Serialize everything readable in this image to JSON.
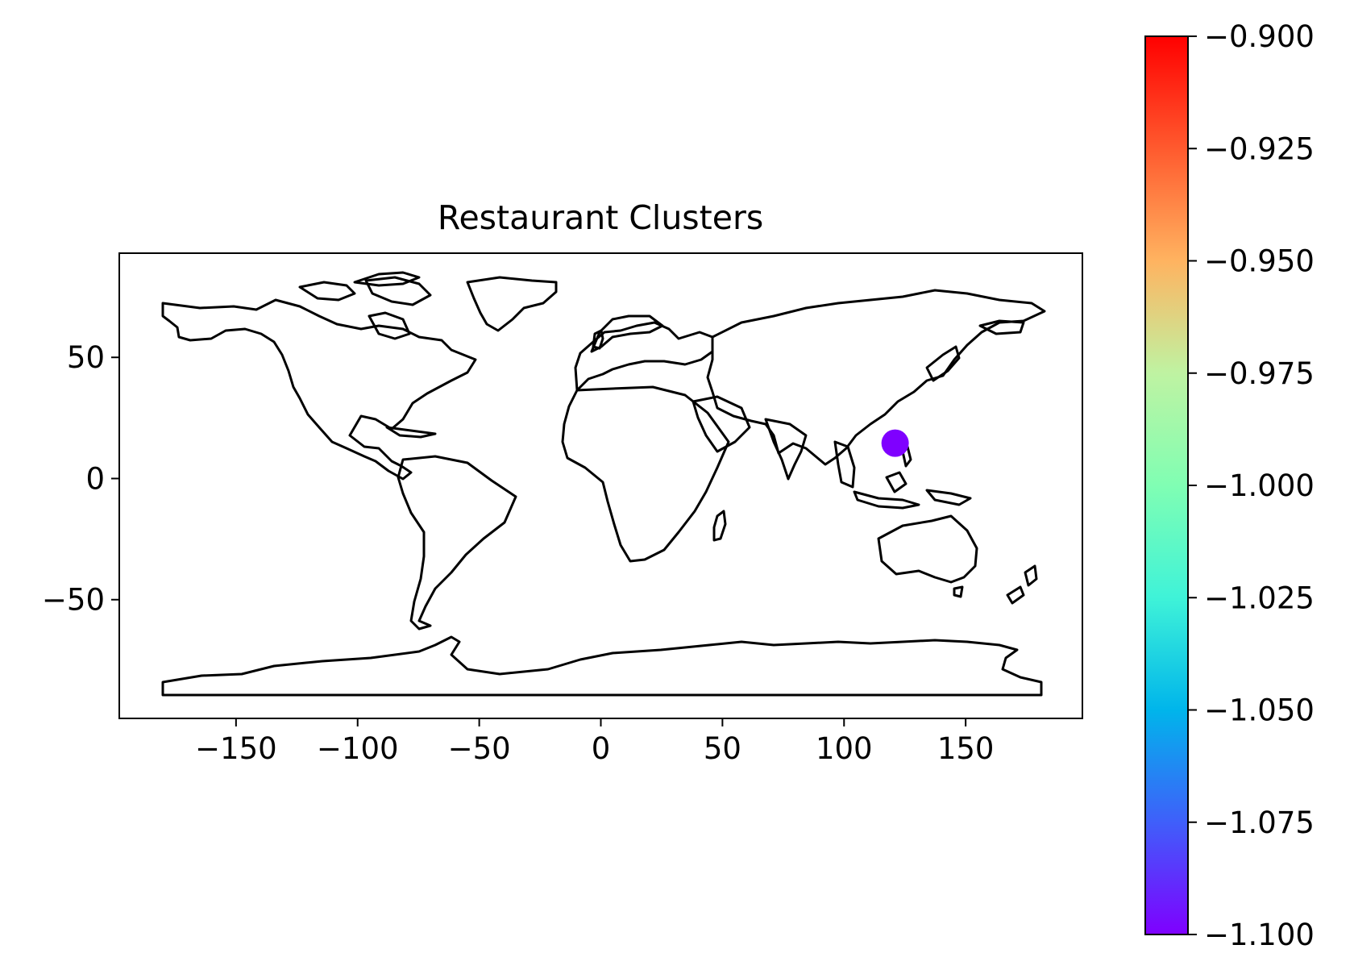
{
  "chart_data": {
    "type": "scatter",
    "title": "Restaurant Clusters",
    "xlabel": "",
    "ylabel": "",
    "xlim": [
      -198,
      198
    ],
    "ylim": [
      -99,
      93
    ],
    "xticks": [
      -150,
      -100,
      -50,
      0,
      50,
      100,
      150
    ],
    "xtick_labels": [
      "−150",
      "−100",
      "−50",
      "0",
      "50",
      "100",
      "150"
    ],
    "yticks": [
      50,
      0,
      -50
    ],
    "ytick_labels": [
      "50",
      "0",
      "−50"
    ],
    "grid": false,
    "basemap": "world coastlines (outline only)",
    "points": [
      {
        "x": 121,
        "y": 14.6,
        "value": -1.1,
        "color": "#7f00ff"
      }
    ],
    "colorbar": {
      "cmap": "rainbow",
      "vmin": -1.1,
      "vmax": -0.9,
      "ticks": [
        -0.9,
        -0.925,
        -0.95,
        -0.975,
        -1.0,
        -1.025,
        -1.05,
        -1.075,
        -1.1
      ],
      "tick_labels": [
        "−0.900",
        "−0.925",
        "−0.950",
        "−0.975",
        "−1.000",
        "−1.025",
        "−1.050",
        "−1.075",
        "−1.100"
      ],
      "colors": [
        "#7f00ff",
        "#3f5ffa",
        "#00b5eb",
        "#3ff3d8",
        "#80feb3",
        "#bff3a2",
        "#ffb360",
        "#ff5a2e",
        "#ff0000"
      ]
    }
  }
}
